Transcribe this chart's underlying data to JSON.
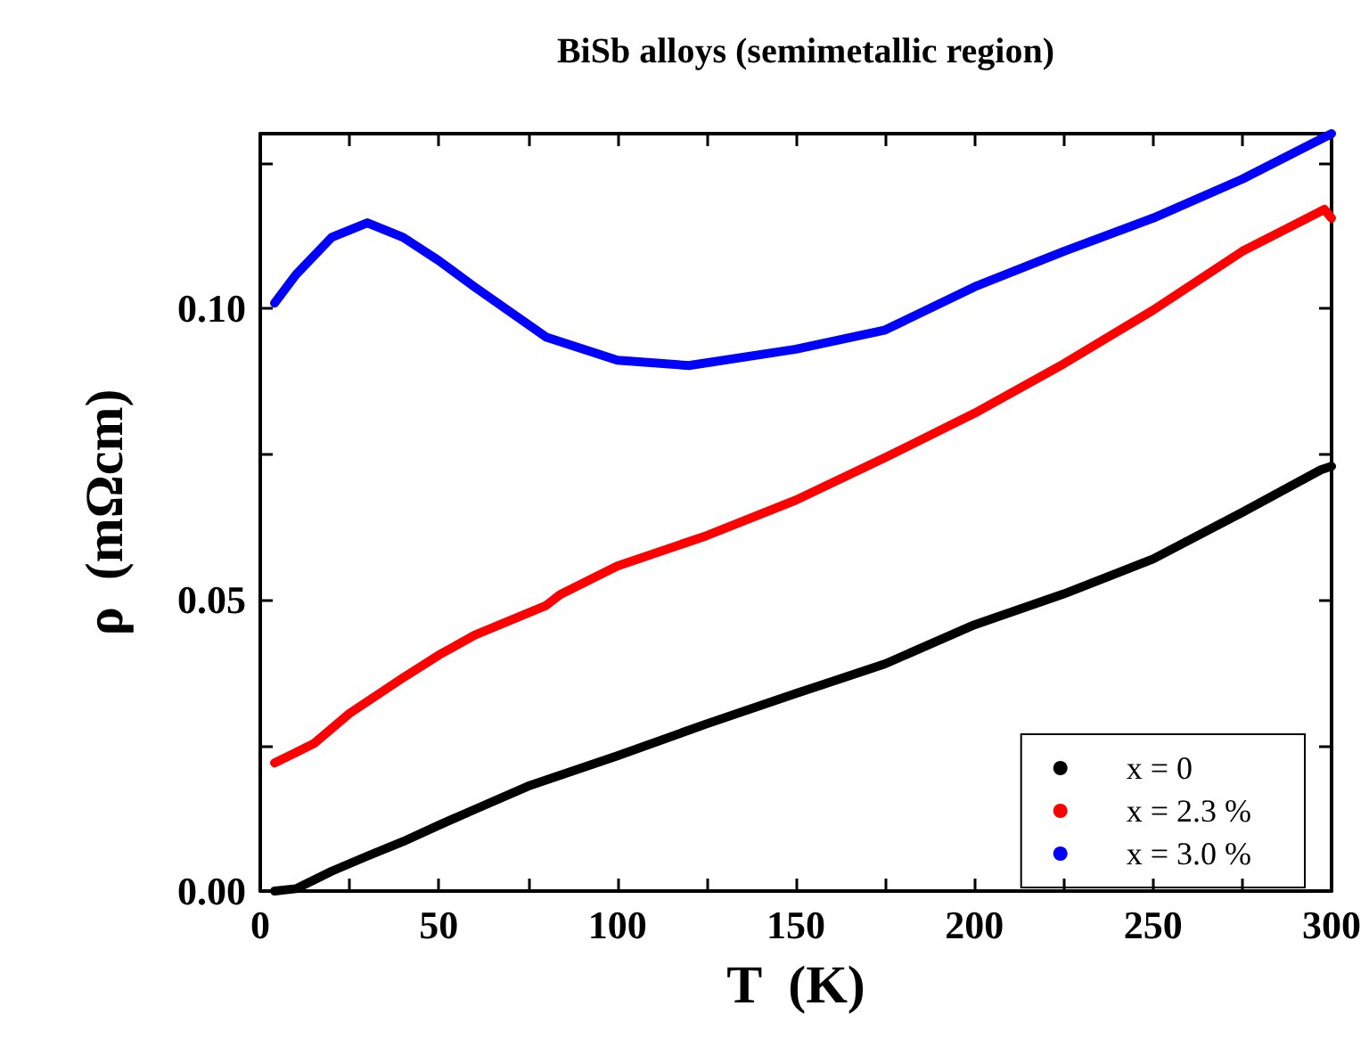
{
  "chart_data": {
    "type": "line",
    "title": "BiSb alloys (semimetallic region)",
    "xlabel": "T  (K)",
    "ylabel": "ρ  (mΩcm)",
    "xlim": [
      0,
      300
    ],
    "xticks": [
      0,
      {
        "value": 25,
        "label": null
      },
      50,
      {
        "value": 75,
        "label": null
      },
      100,
      {
        "value": 125,
        "label": null
      },
      150,
      {
        "value": 175,
        "label": null
      },
      200,
      {
        "value": 225,
        "label": null
      },
      250,
      {
        "value": 275,
        "label": null
      },
      300
    ],
    "ylim": [
      0,
      0.13
    ],
    "yticks": [
      "0.00",
      {
        "value": 0.025,
        "label": null
      },
      {
        "value": 0.05,
        "label": "0.05"
      },
      {
        "value": 0.075,
        "label": null
      },
      {
        "value": 0.1,
        "label": "0.10"
      },
      {
        "value": 0.125,
        "label": null
      }
    ],
    "legend": "bottom right",
    "grid": false,
    "marker": "none",
    "series": [
      {
        "name": "x = 0",
        "color": "#000000",
        "x": [
          4,
          10,
          20,
          30,
          40,
          50,
          60,
          75,
          100,
          125,
          150,
          175,
          200,
          225,
          250,
          275,
          297,
          300
        ],
        "values": [
          0.0,
          0.0004,
          0.0034,
          0.006,
          0.0085,
          0.0113,
          0.014,
          0.018,
          0.0232,
          0.0287,
          0.0339,
          0.039,
          0.0457,
          0.051,
          0.057,
          0.065,
          0.0723,
          0.0729
        ]
      },
      {
        "name": "x = 2.3 %",
        "color": "#ff0000",
        "x": [
          4,
          10,
          15,
          25,
          40,
          50,
          60,
          80,
          84,
          100,
          125,
          150,
          175,
          200,
          225,
          250,
          275,
          298,
          300
        ],
        "values": [
          0.022,
          0.0238,
          0.0253,
          0.0305,
          0.0366,
          0.0405,
          0.0439,
          0.049,
          0.0509,
          0.0558,
          0.061,
          0.0671,
          0.0744,
          0.082,
          0.0905,
          0.0997,
          0.1098,
          0.117,
          0.1155
        ]
      },
      {
        "name": "x = 3.0 %",
        "color": "#0000ff",
        "x": [
          4,
          10,
          20,
          30,
          40,
          50,
          60,
          80,
          100,
          120,
          150,
          175,
          200,
          225,
          250,
          275,
          300
        ],
        "values": [
          0.1009,
          0.1058,
          0.1122,
          0.1147,
          0.1122,
          0.1082,
          0.1037,
          0.0951,
          0.0911,
          0.0902,
          0.093,
          0.0963,
          0.1037,
          0.1098,
          0.1155,
          0.1222,
          0.13
        ]
      }
    ]
  }
}
